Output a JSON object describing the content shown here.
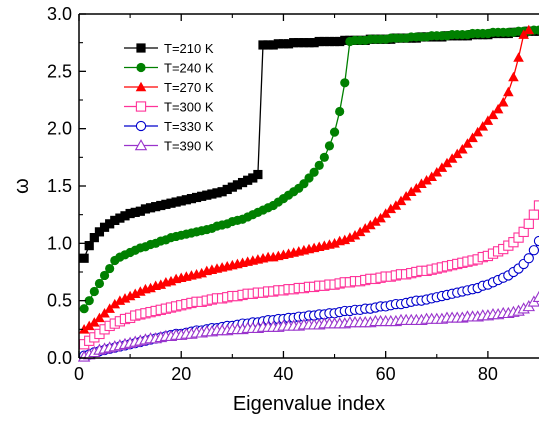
{
  "chart_data": {
    "type": "line",
    "title": "",
    "xlabel": "Eigenvalue index",
    "ylabel": "ω",
    "xlim": [
      0,
      90
    ],
    "ylim": [
      0,
      3.0
    ],
    "xticks": [
      0,
      20,
      40,
      60,
      80
    ],
    "yticks": [
      0.0,
      0.5,
      1.0,
      1.5,
      2.0,
      2.5,
      3.0
    ],
    "grid": false,
    "legend": "top-left",
    "series": [
      {
        "name": "T=210 K",
        "color": "#000000",
        "marker": "filled-square",
        "x": [
          1,
          2,
          3,
          4,
          5,
          6,
          7,
          8,
          9,
          10,
          11,
          12,
          13,
          14,
          15,
          16,
          17,
          18,
          19,
          20,
          21,
          22,
          23,
          24,
          25,
          26,
          27,
          28,
          29,
          30,
          31,
          32,
          33,
          34,
          35,
          36,
          37,
          38,
          39,
          40,
          41,
          42,
          43,
          44,
          45,
          46,
          47,
          48,
          49,
          50,
          51,
          52,
          53,
          54,
          55,
          56,
          57,
          58,
          59,
          60,
          61,
          62,
          63,
          64,
          65,
          66,
          67,
          68,
          69,
          70,
          71,
          72,
          73,
          74,
          75,
          76,
          77,
          78,
          79,
          80,
          81,
          82,
          83,
          84,
          85,
          86,
          87,
          88,
          89,
          90
        ],
        "values": [
          0.87,
          0.98,
          1.05,
          1.1,
          1.14,
          1.17,
          1.2,
          1.22,
          1.24,
          1.26,
          1.27,
          1.28,
          1.3,
          1.31,
          1.32,
          1.33,
          1.34,
          1.35,
          1.36,
          1.37,
          1.38,
          1.39,
          1.4,
          1.41,
          1.42,
          1.43,
          1.44,
          1.45,
          1.47,
          1.49,
          1.51,
          1.53,
          1.55,
          1.57,
          1.6,
          2.73,
          2.73,
          2.73,
          2.74,
          2.74,
          2.74,
          2.75,
          2.75,
          2.75,
          2.75,
          2.75,
          2.76,
          2.76,
          2.76,
          2.76,
          2.76,
          2.77,
          2.77,
          2.77,
          2.77,
          2.77,
          2.78,
          2.78,
          2.78,
          2.78,
          2.78,
          2.79,
          2.79,
          2.79,
          2.79,
          2.79,
          2.8,
          2.8,
          2.8,
          2.8,
          2.8,
          2.81,
          2.81,
          2.81,
          2.81,
          2.81,
          2.82,
          2.82,
          2.82,
          2.82,
          2.83,
          2.83,
          2.83,
          2.83,
          2.84,
          2.84,
          2.84,
          2.85,
          2.85,
          2.85
        ]
      },
      {
        "name": "T=240 K",
        "color": "#008000",
        "marker": "filled-circle",
        "x": [
          1,
          2,
          3,
          4,
          5,
          6,
          7,
          8,
          9,
          10,
          11,
          12,
          13,
          14,
          15,
          16,
          17,
          18,
          19,
          20,
          21,
          22,
          23,
          24,
          25,
          26,
          27,
          28,
          29,
          30,
          31,
          32,
          33,
          34,
          35,
          36,
          37,
          38,
          39,
          40,
          41,
          42,
          43,
          44,
          45,
          46,
          47,
          48,
          49,
          50,
          51,
          52,
          53,
          54,
          55,
          56,
          57,
          58,
          59,
          60,
          61,
          62,
          63,
          64,
          65,
          66,
          67,
          68,
          69,
          70,
          71,
          72,
          73,
          74,
          75,
          76,
          77,
          78,
          79,
          80,
          81,
          82,
          83,
          84,
          85,
          86,
          87,
          88,
          89,
          90
        ],
        "values": [
          0.43,
          0.5,
          0.58,
          0.65,
          0.72,
          0.78,
          0.85,
          0.88,
          0.9,
          0.92,
          0.94,
          0.96,
          0.97,
          0.99,
          1.0,
          1.02,
          1.03,
          1.05,
          1.06,
          1.07,
          1.08,
          1.09,
          1.1,
          1.11,
          1.12,
          1.13,
          1.15,
          1.16,
          1.17,
          1.19,
          1.2,
          1.21,
          1.23,
          1.25,
          1.27,
          1.29,
          1.31,
          1.33,
          1.36,
          1.39,
          1.42,
          1.45,
          1.48,
          1.52,
          1.57,
          1.62,
          1.68,
          1.75,
          1.85,
          1.97,
          2.15,
          2.4,
          2.76,
          2.77,
          2.77,
          2.77,
          2.78,
          2.78,
          2.78,
          2.78,
          2.79,
          2.79,
          2.79,
          2.79,
          2.8,
          2.8,
          2.8,
          2.8,
          2.81,
          2.81,
          2.81,
          2.81,
          2.82,
          2.82,
          2.82,
          2.82,
          2.83,
          2.83,
          2.83,
          2.83,
          2.84,
          2.84,
          2.84,
          2.84,
          2.84,
          2.85,
          2.85,
          2.85,
          2.86,
          2.86
        ]
      },
      {
        "name": "T=270 K",
        "color": "#ff0000",
        "marker": "filled-triangle",
        "x": [
          1,
          2,
          3,
          4,
          5,
          6,
          7,
          8,
          9,
          10,
          11,
          12,
          13,
          14,
          15,
          16,
          17,
          18,
          19,
          20,
          21,
          22,
          23,
          24,
          25,
          26,
          27,
          28,
          29,
          30,
          31,
          32,
          33,
          34,
          35,
          36,
          37,
          38,
          39,
          40,
          41,
          42,
          43,
          44,
          45,
          46,
          47,
          48,
          49,
          50,
          51,
          52,
          53,
          54,
          55,
          56,
          57,
          58,
          59,
          60,
          61,
          62,
          63,
          64,
          65,
          66,
          67,
          68,
          69,
          70,
          71,
          72,
          73,
          74,
          75,
          76,
          77,
          78,
          79,
          80,
          81,
          82,
          83,
          84,
          85,
          86,
          87,
          88
        ],
        "values": [
          0.25,
          0.28,
          0.31,
          0.35,
          0.39,
          0.43,
          0.47,
          0.5,
          0.52,
          0.54,
          0.56,
          0.58,
          0.6,
          0.61,
          0.63,
          0.64,
          0.66,
          0.67,
          0.69,
          0.7,
          0.71,
          0.72,
          0.73,
          0.74,
          0.76,
          0.77,
          0.78,
          0.79,
          0.8,
          0.81,
          0.82,
          0.83,
          0.84,
          0.85,
          0.86,
          0.87,
          0.88,
          0.88,
          0.89,
          0.9,
          0.91,
          0.92,
          0.93,
          0.94,
          0.95,
          0.96,
          0.97,
          0.98,
          0.99,
          1.0,
          1.02,
          1.03,
          1.05,
          1.07,
          1.1,
          1.13,
          1.16,
          1.19,
          1.22,
          1.26,
          1.3,
          1.33,
          1.37,
          1.41,
          1.45,
          1.48,
          1.52,
          1.55,
          1.58,
          1.62,
          1.66,
          1.7,
          1.74,
          1.78,
          1.82,
          1.87,
          1.92,
          1.97,
          2.02,
          2.07,
          2.12,
          2.17,
          2.23,
          2.32,
          2.45,
          2.62,
          2.82,
          2.86
        ]
      },
      {
        "name": "T=300 K",
        "color": "#ff3399",
        "marker": "open-square",
        "x": [
          1,
          2,
          3,
          4,
          5,
          6,
          7,
          8,
          9,
          10,
          11,
          12,
          13,
          14,
          15,
          16,
          17,
          18,
          19,
          20,
          21,
          22,
          23,
          24,
          25,
          26,
          27,
          28,
          29,
          30,
          31,
          32,
          33,
          34,
          35,
          36,
          37,
          38,
          39,
          40,
          41,
          42,
          43,
          44,
          45,
          46,
          47,
          48,
          49,
          50,
          51,
          52,
          53,
          54,
          55,
          56,
          57,
          58,
          59,
          60,
          61,
          62,
          63,
          64,
          65,
          66,
          67,
          68,
          69,
          70,
          71,
          72,
          73,
          74,
          75,
          76,
          77,
          78,
          79,
          80,
          81,
          82,
          83,
          84,
          85,
          86,
          87,
          88,
          89,
          90
        ],
        "values": [
          0.12,
          0.15,
          0.18,
          0.21,
          0.25,
          0.28,
          0.3,
          0.32,
          0.34,
          0.35,
          0.37,
          0.38,
          0.39,
          0.4,
          0.41,
          0.42,
          0.43,
          0.44,
          0.45,
          0.46,
          0.47,
          0.48,
          0.49,
          0.49,
          0.5,
          0.51,
          0.52,
          0.52,
          0.53,
          0.54,
          0.54,
          0.55,
          0.56,
          0.56,
          0.57,
          0.57,
          0.58,
          0.58,
          0.59,
          0.59,
          0.6,
          0.6,
          0.61,
          0.61,
          0.62,
          0.62,
          0.63,
          0.63,
          0.64,
          0.64,
          0.65,
          0.66,
          0.66,
          0.67,
          0.67,
          0.68,
          0.69,
          0.69,
          0.7,
          0.71,
          0.71,
          0.72,
          0.73,
          0.73,
          0.74,
          0.75,
          0.76,
          0.76,
          0.77,
          0.78,
          0.79,
          0.8,
          0.81,
          0.82,
          0.83,
          0.84,
          0.85,
          0.86,
          0.88,
          0.89,
          0.91,
          0.93,
          0.95,
          0.98,
          1.01,
          1.05,
          1.1,
          1.17,
          1.25,
          1.33
        ]
      },
      {
        "name": "T=330 K",
        "color": "#0000cc",
        "marker": "open-circle",
        "x": [
          1,
          2,
          3,
          4,
          5,
          6,
          7,
          8,
          9,
          10,
          11,
          12,
          13,
          14,
          15,
          16,
          17,
          18,
          19,
          20,
          21,
          22,
          23,
          24,
          25,
          26,
          27,
          28,
          29,
          30,
          31,
          32,
          33,
          34,
          35,
          36,
          37,
          38,
          39,
          40,
          41,
          42,
          43,
          44,
          45,
          46,
          47,
          48,
          49,
          50,
          51,
          52,
          53,
          54,
          55,
          56,
          57,
          58,
          59,
          60,
          61,
          62,
          63,
          64,
          65,
          66,
          67,
          68,
          69,
          70,
          71,
          72,
          73,
          74,
          75,
          76,
          77,
          78,
          79,
          80,
          81,
          82,
          83,
          84,
          85,
          86,
          87,
          88,
          89,
          90
        ],
        "values": [
          0.02,
          0.03,
          0.05,
          0.06,
          0.07,
          0.08,
          0.09,
          0.1,
          0.11,
          0.12,
          0.13,
          0.14,
          0.15,
          0.16,
          0.17,
          0.18,
          0.19,
          0.2,
          0.21,
          0.21,
          0.22,
          0.23,
          0.24,
          0.24,
          0.25,
          0.26,
          0.26,
          0.27,
          0.28,
          0.28,
          0.29,
          0.3,
          0.3,
          0.31,
          0.31,
          0.32,
          0.33,
          0.33,
          0.34,
          0.34,
          0.35,
          0.35,
          0.36,
          0.36,
          0.37,
          0.37,
          0.38,
          0.38,
          0.39,
          0.39,
          0.4,
          0.41,
          0.41,
          0.42,
          0.42,
          0.43,
          0.43,
          0.44,
          0.45,
          0.45,
          0.46,
          0.47,
          0.47,
          0.48,
          0.49,
          0.5,
          0.5,
          0.51,
          0.52,
          0.53,
          0.54,
          0.55,
          0.56,
          0.57,
          0.58,
          0.59,
          0.6,
          0.61,
          0.63,
          0.64,
          0.66,
          0.68,
          0.7,
          0.72,
          0.75,
          0.78,
          0.82,
          0.87,
          0.94,
          1.02
        ]
      },
      {
        "name": "T=390 K",
        "color": "#9933cc",
        "marker": "open-triangle",
        "x": [
          1,
          2,
          3,
          4,
          5,
          6,
          7,
          8,
          9,
          10,
          11,
          12,
          13,
          14,
          15,
          16,
          17,
          18,
          19,
          20,
          21,
          22,
          23,
          24,
          25,
          26,
          27,
          28,
          29,
          30,
          31,
          32,
          33,
          34,
          35,
          36,
          37,
          38,
          39,
          40,
          41,
          42,
          43,
          44,
          45,
          46,
          47,
          48,
          49,
          50,
          51,
          52,
          53,
          54,
          55,
          56,
          57,
          58,
          59,
          60,
          61,
          62,
          63,
          64,
          65,
          66,
          67,
          68,
          69,
          70,
          71,
          72,
          73,
          74,
          75,
          76,
          77,
          78,
          79,
          80,
          81,
          82,
          83,
          84,
          85,
          86,
          87,
          88,
          89,
          90
        ],
        "values": [
          0.01,
          0.03,
          0.05,
          0.07,
          0.08,
          0.09,
          0.1,
          0.11,
          0.12,
          0.13,
          0.14,
          0.15,
          0.16,
          0.17,
          0.17,
          0.18,
          0.19,
          0.19,
          0.2,
          0.2,
          0.21,
          0.21,
          0.22,
          0.22,
          0.23,
          0.23,
          0.24,
          0.24,
          0.24,
          0.25,
          0.25,
          0.25,
          0.26,
          0.26,
          0.26,
          0.27,
          0.27,
          0.27,
          0.27,
          0.28,
          0.28,
          0.28,
          0.28,
          0.29,
          0.29,
          0.29,
          0.29,
          0.3,
          0.3,
          0.3,
          0.3,
          0.3,
          0.31,
          0.31,
          0.31,
          0.31,
          0.31,
          0.32,
          0.32,
          0.32,
          0.32,
          0.32,
          0.33,
          0.33,
          0.33,
          0.33,
          0.33,
          0.34,
          0.34,
          0.34,
          0.34,
          0.35,
          0.35,
          0.35,
          0.35,
          0.36,
          0.36,
          0.36,
          0.37,
          0.37,
          0.38,
          0.38,
          0.39,
          0.39,
          0.4,
          0.41,
          0.43,
          0.45,
          0.49,
          0.53
        ]
      }
    ]
  }
}
